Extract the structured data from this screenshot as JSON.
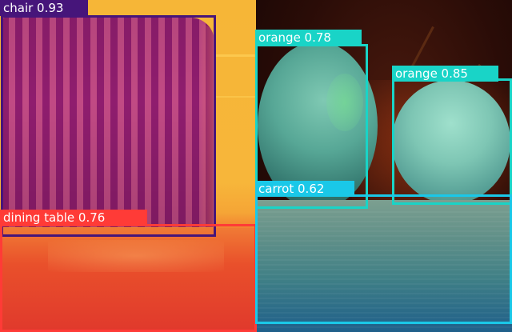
{
  "image": {
    "panels": [
      "chair-and-table-photo",
      "oranges-and-carrot-photo"
    ]
  },
  "colors": {
    "chair": "#46157a",
    "dining_table": "#ff3b37",
    "orange": "#19d4c7",
    "carrot": "#1ac8e8"
  },
  "detections": [
    {
      "id": "chair",
      "label": "chair 0.93",
      "class": "chair",
      "score": 0.93
    },
    {
      "id": "dining-table",
      "label": "dining table 0.76",
      "class": "dining table",
      "score": 0.76
    },
    {
      "id": "orange-left",
      "label": "orange 0.78",
      "class": "orange",
      "score": 0.78
    },
    {
      "id": "orange-right",
      "label": "orange 0.85",
      "class": "orange",
      "score": 0.85
    },
    {
      "id": "carrot",
      "label": "carrot 0.62",
      "class": "carrot",
      "score": 0.62
    }
  ]
}
